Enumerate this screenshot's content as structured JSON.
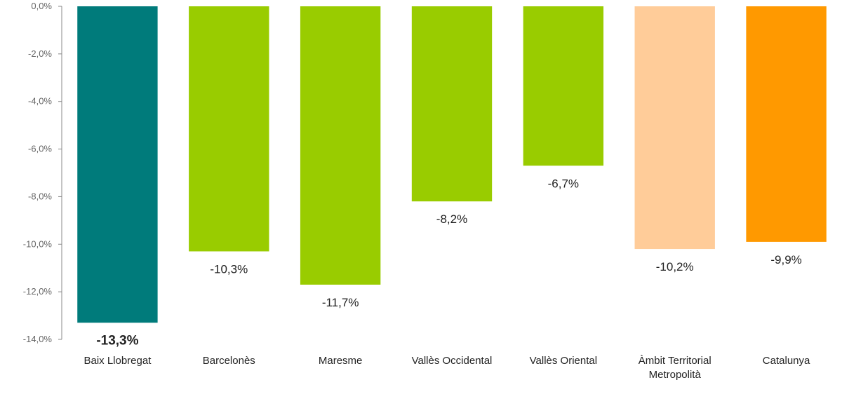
{
  "chart_data": {
    "type": "bar",
    "title": "",
    "xlabel": "",
    "ylabel": "",
    "categories": [
      [
        "Baix Llobregat"
      ],
      [
        "Barcelonès"
      ],
      [
        "Maresme"
      ],
      [
        "Vallès Occidental"
      ],
      [
        "Vallès Oriental"
      ],
      [
        "Àmbit Territorial",
        "Metropolità"
      ],
      [
        "Catalunya"
      ]
    ],
    "values": [
      -13.3,
      -10.3,
      -11.7,
      -8.2,
      -6.7,
      -10.2,
      -9.9
    ],
    "data_labels": [
      "-13,3%",
      "-10,3%",
      "-11,7%",
      "-8,2%",
      "-6,7%",
      "-10,2%",
      "-9,9%"
    ],
    "bar_colors": [
      "#007b7b",
      "#99cc00",
      "#99cc00",
      "#99cc00",
      "#99cc00",
      "#ffcc99",
      "#ff9900"
    ],
    "y_ticks": [
      "0,0%",
      "-2,0%",
      "-4,0%",
      "-6,0%",
      "-8,0%",
      "-10,0%",
      "-12,0%",
      "-14,0%"
    ],
    "ylim": [
      -14,
      0
    ],
    "grid": false,
    "legend": "none"
  }
}
